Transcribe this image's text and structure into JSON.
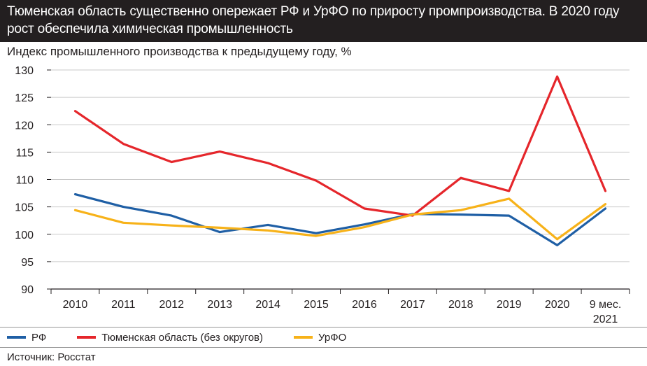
{
  "title": {
    "line1": "Тюменская область существенно опережает РФ и УрФО по приросту промпроизводства. В 2020 году",
    "line2": "рост обеспечила химическая промышленность"
  },
  "source": "Источник: Росстат",
  "chart_data": {
    "type": "line",
    "title": "Тюменская область существенно опережает РФ и УрФО по приросту промпроизводства. В 2020 году рост обеспечила химическая промышленность",
    "ylabel": "Индекс промышленного производства к предыдущему году, %",
    "xlabel": "",
    "ylim": [
      90,
      130
    ],
    "yticks": [
      90,
      95,
      100,
      105,
      110,
      115,
      120,
      125,
      130
    ],
    "grid": "horizontal",
    "legend": "bottom",
    "categories": [
      "2010",
      "2011",
      "2012",
      "2013",
      "2014",
      "2015",
      "2016",
      "2017",
      "2018",
      "2019",
      "2020",
      "9 мес. 2021"
    ],
    "category_lines": [
      [
        "2010"
      ],
      [
        "2011"
      ],
      [
        "2012"
      ],
      [
        "2013"
      ],
      [
        "2014"
      ],
      [
        "2015"
      ],
      [
        "2016"
      ],
      [
        "2017"
      ],
      [
        "2018"
      ],
      [
        "2019"
      ],
      [
        "2020"
      ],
      [
        "9 мес.",
        "2021"
      ]
    ],
    "series": [
      {
        "name": "РФ",
        "color": "#1f5fa5",
        "values": [
          107.3,
          105.0,
          103.4,
          100.4,
          101.7,
          100.2,
          101.8,
          103.7,
          103.6,
          103.4,
          98.0,
          104.7
        ]
      },
      {
        "name": "Тюменская область (без округов)",
        "color": "#e5262b",
        "values": [
          122.5,
          116.5,
          113.2,
          115.1,
          113.0,
          109.8,
          104.7,
          103.4,
          110.3,
          107.9,
          128.8,
          107.9
        ]
      },
      {
        "name": "УрФО",
        "color": "#f7b219",
        "values": [
          104.4,
          102.1,
          101.6,
          101.2,
          100.7,
          99.7,
          101.3,
          103.6,
          104.4,
          106.5,
          99.1,
          105.5
        ]
      }
    ]
  }
}
